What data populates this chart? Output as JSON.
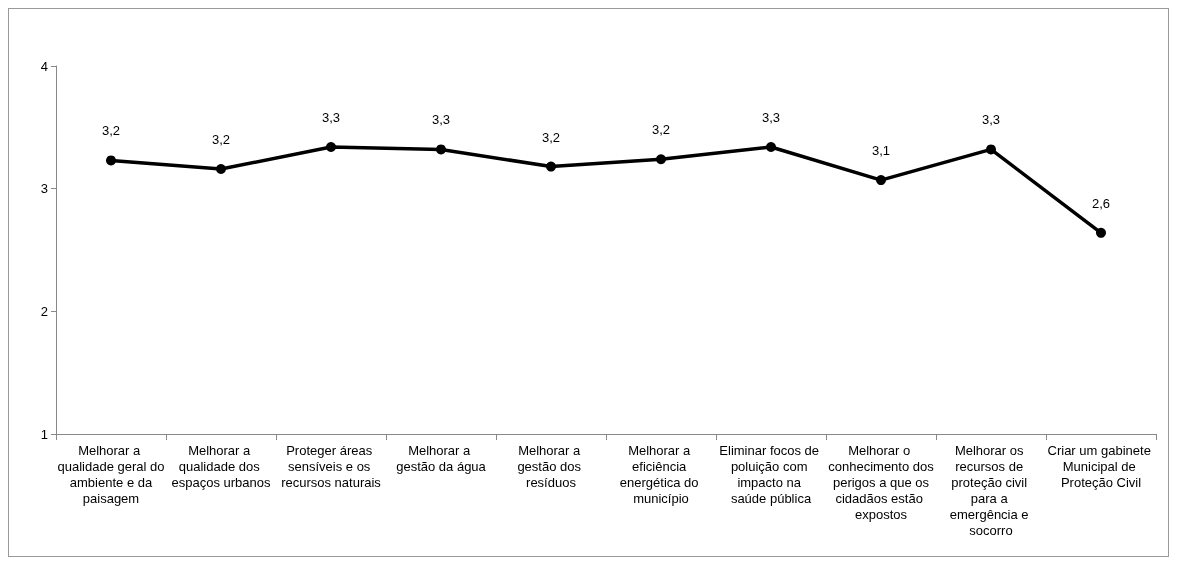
{
  "chart_data": {
    "type": "line",
    "categories": [
      "Melhorar a qualidade geral do ambiente e da paisagem",
      "Melhorar a qualidade dos espaços urbanos",
      "Proteger áreas sensíveis e os recursos naturais",
      "Melhorar a gestão da água",
      "Melhorar a gestão dos resíduos",
      "Melhorar a eficiência energética do município",
      "Eliminar focos de poluição com impacto na saúde pública",
      "Melhorar o conhecimento dos perigos a que os cidadãos estão expostos",
      "Melhorar os recursos de proteção civil para a emergência e socorro",
      "Criar um gabinete Municipal de Proteção Civil"
    ],
    "series": [
      {
        "color": "#000000",
        "values": [
          3.23,
          3.16,
          3.34,
          3.32,
          3.18,
          3.24,
          3.34,
          3.07,
          3.32,
          2.64
        ],
        "value_labels": [
          "3,2",
          "3,2",
          "3,3",
          "3,3",
          "3,2",
          "3,2",
          "3,3",
          "3,1",
          "3,3",
          "2,6"
        ]
      }
    ],
    "ylim": [
      1,
      4
    ],
    "yticks": [
      1,
      2,
      3,
      4
    ],
    "grid": false,
    "marker": "circle",
    "line_style": "solid"
  }
}
